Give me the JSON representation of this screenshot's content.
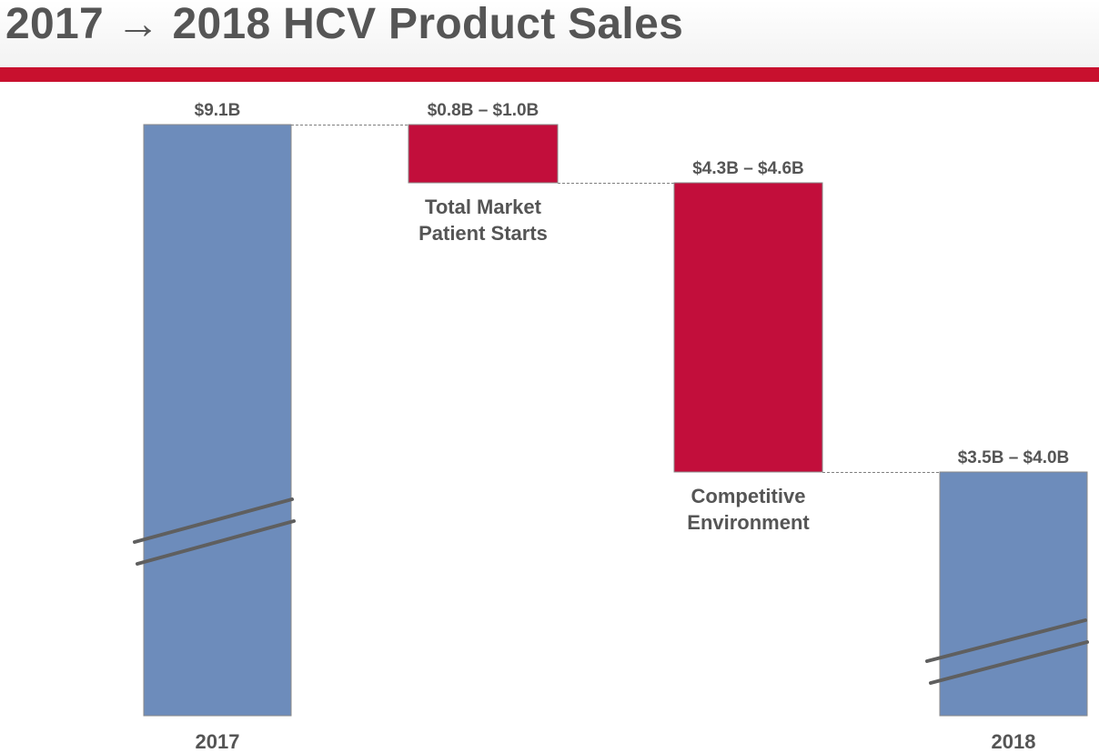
{
  "title": "2017 → 2018 HCV Product Sales",
  "colors": {
    "total": "#6d8cbb",
    "decrease": "#c20e3b",
    "accent_bar": "#c8102e",
    "text": "#555555",
    "break_line": "#5f5f5f",
    "connector": "#808080"
  },
  "chart_data": {
    "type": "bar",
    "subtype": "waterfall",
    "title": "2017 → 2018 HCV Product Sales",
    "unit": "$B",
    "axis_break": true,
    "categories": [
      "2017",
      "Total Market Patient Starts",
      "Competitive Environment",
      "2018"
    ],
    "bars": [
      {
        "name": "2017",
        "kind": "total",
        "start": 0,
        "end": 9.1,
        "value_label": "$9.1B",
        "category_label": "2017",
        "label_lines": []
      },
      {
        "name": "Total Market Patient Starts",
        "kind": "decrease",
        "start": 9.1,
        "end": 8.2,
        "value_low": 0.8,
        "value_high": 1.0,
        "value_label": "$0.8B – $1.0B",
        "category_label": "",
        "label_lines": [
          "Total Market",
          "Patient Starts"
        ]
      },
      {
        "name": "Competitive Environment",
        "kind": "decrease",
        "start": 8.2,
        "end": 3.75,
        "value_low": 4.3,
        "value_high": 4.6,
        "value_label": "$4.3B – $4.6B",
        "category_label": "",
        "label_lines": [
          "Competitive",
          "Environment"
        ]
      },
      {
        "name": "2018",
        "kind": "total",
        "start": 0,
        "end": 3.75,
        "value_low": 3.5,
        "value_high": 4.0,
        "value_label": "$3.5B – $4.0B",
        "category_label": "2018",
        "label_lines": []
      }
    ]
  }
}
